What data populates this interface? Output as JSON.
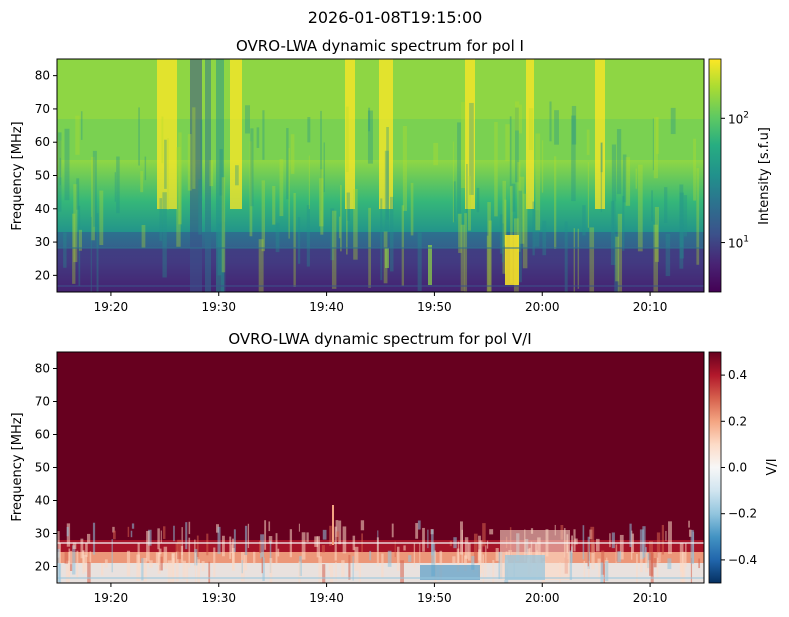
{
  "suptitle": "2026-01-08T19:15:00",
  "chart_data": [
    {
      "type": "heatmap",
      "title": "OVRO-LWA dynamic spectrum for pol I",
      "ylabel": "Frequency [MHz]",
      "xlabel": "",
      "xlim": [
        "19:15",
        "20:15"
      ],
      "ylim": [
        15,
        85
      ],
      "xticks": [
        "19:20",
        "19:30",
        "19:40",
        "19:50",
        "20:00",
        "20:10"
      ],
      "yticks": [
        20,
        30,
        40,
        50,
        60,
        70,
        80
      ],
      "colormap": "viridis",
      "scale": "log",
      "colorbar": {
        "label": "Intensity [s.f.u]",
        "range": [
          4,
          300
        ],
        "ticks": [
          {
            "base": "10",
            "exp": "1",
            "value": 10
          },
          {
            "base": "10",
            "exp": "2",
            "value": 100
          }
        ]
      },
      "grid": false
    },
    {
      "type": "heatmap",
      "title": "OVRO-LWA dynamic spectrum for pol V/I",
      "ylabel": "Frequency [MHz]",
      "xlabel": "",
      "xlim": [
        "19:15",
        "20:15"
      ],
      "ylim": [
        15,
        85
      ],
      "xticks": [
        "19:20",
        "19:30",
        "19:40",
        "19:50",
        "20:00",
        "20:10"
      ],
      "yticks": [
        20,
        30,
        40,
        50,
        60,
        70,
        80
      ],
      "colormap": "RdBu_r",
      "scale": "linear",
      "colorbar": {
        "label": "V/I",
        "range": [
          -0.5,
          0.5
        ],
        "ticks": [
          {
            "label": "0.4",
            "value": 0.4
          },
          {
            "label": "0.2",
            "value": 0.2
          },
          {
            "label": "0.0",
            "value": 0.0
          },
          {
            "label": "−0.2",
            "value": -0.2
          },
          {
            "label": "−0.4",
            "value": -0.4
          }
        ]
      },
      "grid": false
    }
  ]
}
